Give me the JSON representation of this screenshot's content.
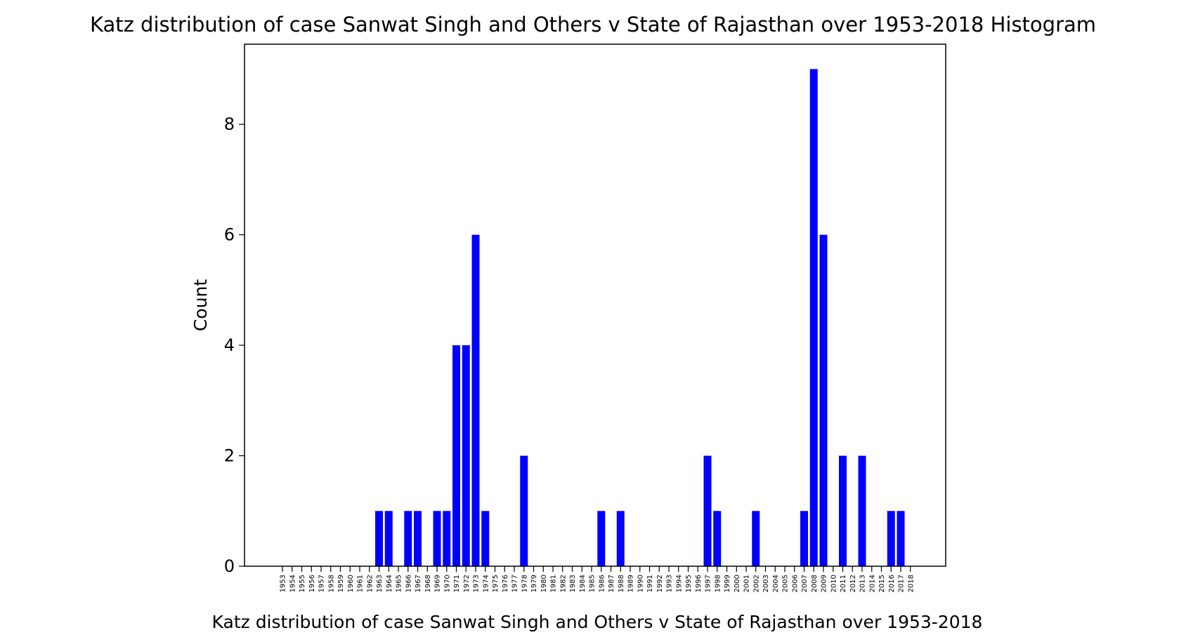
{
  "chart_data": {
    "type": "bar",
    "title": "Katz distribution of case Sanwat Singh and Others v State of Rajasthan over 1953-2018 Histogram",
    "xlabel": "Katz distribution of case Sanwat Singh and Others v State of Rajasthan over 1953-2018",
    "ylabel": "Count",
    "ylim": [
      0,
      9.45
    ],
    "y_ticks": [
      "0",
      "2",
      "4",
      "6",
      "8"
    ],
    "grid": false,
    "bar_color": "#0000ff",
    "categories": [
      "1953",
      "1954",
      "1955",
      "1956",
      "1957",
      "1958",
      "1959",
      "1960",
      "1961",
      "1962",
      "1963",
      "1964",
      "1965",
      "1966",
      "1967",
      "1968",
      "1969",
      "1970",
      "1971",
      "1972",
      "1973",
      "1974",
      "1975",
      "1976",
      "1977",
      "1978",
      "1979",
      "1980",
      "1981",
      "1982",
      "1983",
      "1984",
      "1985",
      "1986",
      "1987",
      "1988",
      "1989",
      "1990",
      "1991",
      "1992",
      "1993",
      "1994",
      "1995",
      "1996",
      "1997",
      "1998",
      "1999",
      "2000",
      "2001",
      "2002",
      "2003",
      "2004",
      "2005",
      "2006",
      "2007",
      "2008",
      "2009",
      "2010",
      "2011",
      "2012",
      "2013",
      "2014",
      "2015",
      "2016",
      "2017",
      "2018"
    ],
    "values": [
      0,
      0,
      0,
      0,
      0,
      0,
      0,
      0,
      0,
      0,
      1,
      1,
      0,
      1,
      1,
      0,
      1,
      1,
      4,
      4,
      6,
      1,
      0,
      0,
      0,
      2,
      0,
      0,
      0,
      0,
      0,
      0,
      0,
      1,
      0,
      1,
      0,
      0,
      0,
      0,
      0,
      0,
      0,
      0,
      2,
      1,
      0,
      0,
      0,
      1,
      0,
      0,
      0,
      0,
      1,
      9,
      6,
      0,
      2,
      0,
      2,
      0,
      0,
      1,
      1,
      0
    ]
  }
}
